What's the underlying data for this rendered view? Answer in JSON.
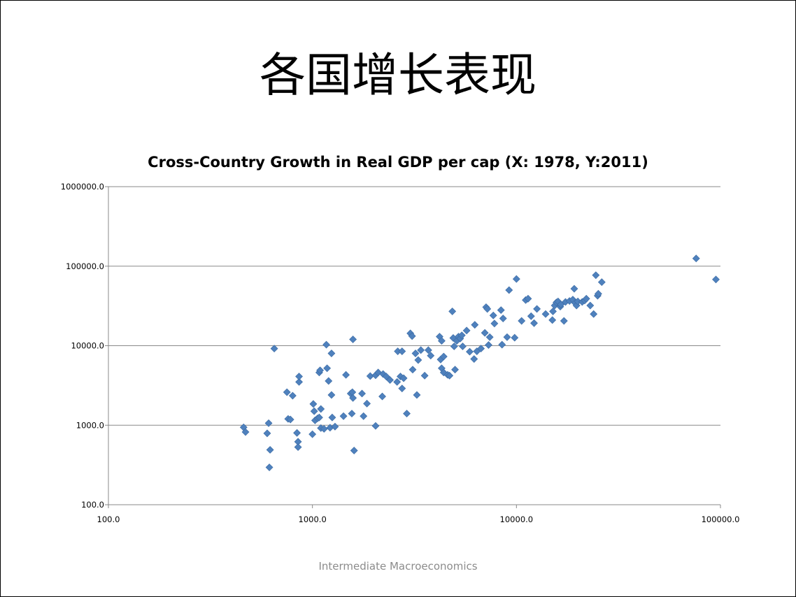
{
  "slide": {
    "title": "各国增长表现",
    "footer": "Intermediate Macroeconomics"
  },
  "colors": {
    "marker": "#4f81bd",
    "marker_stroke": "#3a6aa3",
    "gridline": "#898989",
    "axis": "#898989",
    "text": "#000000",
    "footer_text": "#8c8c8c"
  },
  "chart_data": {
    "type": "scatter",
    "title": "Cross-Country Growth in Real GDP per cap (X: 1978, Y:2011)",
    "xlabel": "",
    "ylabel": "",
    "x_scale": "log",
    "y_scale": "log",
    "xlim": [
      100,
      100000
    ],
    "ylim": [
      100,
      1000000
    ],
    "x_ticks": [
      "100.0",
      "1000.0",
      "10000.0",
      "100000.0"
    ],
    "y_ticks": [
      "100.0",
      "1000.0",
      "10000.0",
      "100000.0",
      "1000000.0"
    ],
    "grid": "horizontal major gridlines",
    "legend": "none",
    "marker": "diamond",
    "series": [
      {
        "points": [
          [
            460,
            940
          ],
          [
            470,
            820
          ],
          [
            600,
            790
          ],
          [
            610,
            1060
          ],
          [
            615,
            295
          ],
          [
            620,
            490
          ],
          [
            650,
            9200
          ],
          [
            750,
            2600
          ],
          [
            760,
            1200
          ],
          [
            780,
            1180
          ],
          [
            800,
            2350
          ],
          [
            840,
            800
          ],
          [
            850,
            620
          ],
          [
            850,
            530
          ],
          [
            860,
            3500
          ],
          [
            860,
            4100
          ],
          [
            1000,
            770
          ],
          [
            1010,
            1850
          ],
          [
            1020,
            1500
          ],
          [
            1030,
            1150
          ],
          [
            1060,
            1220
          ],
          [
            1080,
            4600
          ],
          [
            1080,
            1250
          ],
          [
            1090,
            4900
          ],
          [
            1100,
            1600
          ],
          [
            1100,
            920
          ],
          [
            1140,
            900
          ],
          [
            1170,
            10300
          ],
          [
            1180,
            5200
          ],
          [
            1200,
            3600
          ],
          [
            1220,
            930
          ],
          [
            1240,
            8000
          ],
          [
            1240,
            2400
          ],
          [
            1250,
            1250
          ],
          [
            1290,
            960
          ],
          [
            1420,
            1300
          ],
          [
            1460,
            4300
          ],
          [
            1540,
            2500
          ],
          [
            1560,
            1400
          ],
          [
            1570,
            2600
          ],
          [
            1580,
            2200
          ],
          [
            1580,
            12000
          ],
          [
            1600,
            480
          ],
          [
            1750,
            2500
          ],
          [
            1780,
            1300
          ],
          [
            1850,
            1870
          ],
          [
            1920,
            4150
          ],
          [
            2040,
            980
          ],
          [
            2040,
            4250
          ],
          [
            2100,
            4600
          ],
          [
            2200,
            2300
          ],
          [
            2220,
            4400
          ],
          [
            2300,
            4100
          ],
          [
            2400,
            3700
          ],
          [
            2600,
            3500
          ],
          [
            2620,
            8500
          ],
          [
            2700,
            4100
          ],
          [
            2750,
            2900
          ],
          [
            2750,
            8500
          ],
          [
            2800,
            3900
          ],
          [
            2900,
            1400
          ],
          [
            3020,
            14300
          ],
          [
            3080,
            13200
          ],
          [
            3100,
            5000
          ],
          [
            3200,
            8000
          ],
          [
            3250,
            2400
          ],
          [
            3300,
            6600
          ],
          [
            3400,
            8800
          ],
          [
            3550,
            4200
          ],
          [
            3700,
            8800
          ],
          [
            3800,
            7500
          ],
          [
            4200,
            13000
          ],
          [
            4250,
            6700
          ],
          [
            4300,
            11500
          ],
          [
            4300,
            5200
          ],
          [
            4400,
            7300
          ],
          [
            4400,
            4600
          ],
          [
            4600,
            4300
          ],
          [
            4700,
            4200
          ],
          [
            4850,
            27000
          ],
          [
            4900,
            12500
          ],
          [
            4950,
            9800
          ],
          [
            5000,
            5000
          ],
          [
            5100,
            11500
          ],
          [
            5200,
            13000
          ],
          [
            5300,
            12300
          ],
          [
            5400,
            13500
          ],
          [
            5450,
            9800
          ],
          [
            5700,
            15500
          ],
          [
            5900,
            8400
          ],
          [
            6200,
            6800
          ],
          [
            6250,
            18300
          ],
          [
            6400,
            8500
          ],
          [
            6700,
            9200
          ],
          [
            7000,
            14500
          ],
          [
            7100,
            30500
          ],
          [
            7200,
            29000
          ],
          [
            7300,
            10200
          ],
          [
            7400,
            12800
          ],
          [
            7700,
            24000
          ],
          [
            7800,
            19000
          ],
          [
            8400,
            28000
          ],
          [
            8500,
            10300
          ],
          [
            8600,
            22000
          ],
          [
            9000,
            12800
          ],
          [
            9200,
            50000
          ],
          [
            9800,
            12600
          ],
          [
            10000,
            69000
          ],
          [
            10600,
            20500
          ],
          [
            11100,
            37500
          ],
          [
            11400,
            39000
          ],
          [
            11800,
            23500
          ],
          [
            12200,
            19200
          ],
          [
            12600,
            29000
          ],
          [
            13900,
            25000
          ],
          [
            15000,
            21000
          ],
          [
            15100,
            27000
          ],
          [
            15400,
            32000
          ],
          [
            15700,
            35000
          ],
          [
            16000,
            36000
          ],
          [
            16400,
            31000
          ],
          [
            16500,
            33000
          ],
          [
            17100,
            20500
          ],
          [
            17400,
            35500
          ],
          [
            18200,
            36500
          ],
          [
            18900,
            38000
          ],
          [
            19200,
            52000
          ],
          [
            19400,
            34500
          ],
          [
            19700,
            32000
          ],
          [
            20000,
            36000
          ],
          [
            21000,
            35500
          ],
          [
            21600,
            37000
          ],
          [
            22000,
            39000
          ],
          [
            23000,
            32000
          ],
          [
            23900,
            25000
          ],
          [
            24500,
            77000
          ],
          [
            25000,
            42500
          ],
          [
            25200,
            45000
          ],
          [
            26200,
            63000
          ],
          [
            76000,
            125000
          ],
          [
            95000,
            68000
          ]
        ]
      }
    ]
  }
}
